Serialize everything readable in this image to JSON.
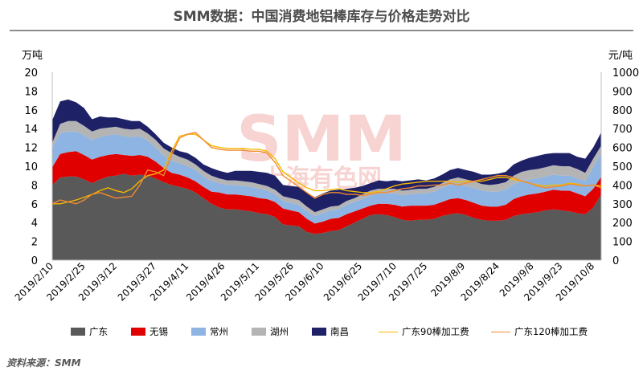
{
  "title": "SMM数据：中国消费地铝棒库存与价格走势对比",
  "source": "资料来源：SMM",
  "watermark": {
    "main": "SMM",
    "sub": "上海有色网"
  },
  "chart_data": {
    "type": "area",
    "stacked": true,
    "grid": false,
    "legend_position": "bottom",
    "x": [
      "2019/2/10",
      "2019/2/14",
      "2019/2/18",
      "2019/2/21",
      "2019/2/25",
      "2019/2/28",
      "2019/3/4",
      "2019/3/7",
      "2019/3/12",
      "2019/3/14",
      "2019/3/18",
      "2019/3/21",
      "2019/3/25",
      "2019/3/28",
      "2019/4/1",
      "2019/4/4",
      "2019/4/8",
      "2019/4/11",
      "2019/4/15",
      "2019/4/18",
      "2019/4/22",
      "2019/4/25",
      "2019/4/29",
      "2019/5/2",
      "2019/5/6",
      "2019/5/9",
      "2019/5/13",
      "2019/5/16",
      "2019/5/20",
      "2019/5/23",
      "2019/5/27",
      "2019/5/30",
      "2019/6/3",
      "2019/6/6",
      "2019/6/10",
      "2019/6/13",
      "2019/6/17",
      "2019/6/20",
      "2019/6/24",
      "2019/6/27",
      "2019/7/1",
      "2019/7/4",
      "2019/7/8",
      "2019/7/11",
      "2019/7/15",
      "2019/7/18",
      "2019/7/22",
      "2019/7/25",
      "2019/7/29",
      "2019/8/1",
      "2019/8/5",
      "2019/8/8",
      "2019/8/12",
      "2019/8/15",
      "2019/8/19",
      "2019/8/22",
      "2019/8/26",
      "2019/8/29",
      "2019/9/2",
      "2019/9/5",
      "2019/9/9",
      "2019/9/12",
      "2019/9/16",
      "2019/9/19",
      "2019/9/23",
      "2019/9/26",
      "2019/9/30",
      "2019/10/3",
      "2019/10/8",
      "2019/10/10"
    ],
    "x_tick_labels": [
      "2019/2/10",
      "2019/2/25",
      "2019/3/12",
      "2019/3/27",
      "2019/4/11",
      "2019/4/26",
      "2019/5/11",
      "2019/5/26",
      "2019/6/10",
      "2019/6/25",
      "2019/7/10",
      "2019/7/25",
      "2019/8/9",
      "2019/8/24",
      "2019/9/8",
      "2019/9/23",
      "2019/10/8"
    ],
    "y_left": {
      "unit": "万吨",
      "min": 0,
      "max": 20,
      "ticks": [
        0,
        2,
        4,
        6,
        8,
        10,
        12,
        14,
        16,
        18,
        20
      ]
    },
    "y_right": {
      "unit": "元/吨",
      "min": 0,
      "max": 1000,
      "ticks": [
        0,
        100,
        200,
        300,
        400,
        500,
        600,
        700,
        800,
        900,
        1000
      ]
    },
    "series": [
      {
        "name": "广东",
        "type": "area",
        "color": "#595959",
        "values": [
          8.0,
          8.8,
          8.9,
          8.9,
          8.6,
          8.2,
          8.6,
          8.9,
          9.0,
          9.2,
          9.0,
          9.1,
          9.0,
          8.7,
          8.3,
          8.0,
          7.8,
          7.6,
          7.2,
          6.6,
          6.0,
          5.6,
          5.4,
          5.4,
          5.3,
          5.2,
          5.0,
          4.9,
          4.6,
          3.8,
          3.7,
          3.6,
          3.0,
          2.8,
          2.9,
          3.1,
          3.2,
          3.6,
          4.0,
          4.4,
          4.8,
          4.9,
          4.8,
          4.6,
          4.3,
          4.2,
          4.3,
          4.3,
          4.4,
          4.7,
          4.9,
          5.0,
          4.8,
          4.5,
          4.3,
          4.2,
          4.2,
          4.3,
          4.7,
          4.9,
          5.0,
          5.1,
          5.3,
          5.4,
          5.3,
          5.2,
          5.0,
          4.9,
          5.6,
          7.0
        ]
      },
      {
        "name": "无锡",
        "type": "area",
        "color": "#e00000",
        "values": [
          1.9,
          2.5,
          2.6,
          2.7,
          2.6,
          2.5,
          2.4,
          2.3,
          2.3,
          2.0,
          2.1,
          2.1,
          2.0,
          1.8,
          1.5,
          1.3,
          1.3,
          1.2,
          1.2,
          1.2,
          1.3,
          1.6,
          1.6,
          1.6,
          1.6,
          1.6,
          1.6,
          1.6,
          1.6,
          1.7,
          1.6,
          1.5,
          1.4,
          1.1,
          1.2,
          1.3,
          1.3,
          1.3,
          1.2,
          1.1,
          1.0,
          1.1,
          1.2,
          1.3,
          1.4,
          1.6,
          1.5,
          1.5,
          1.5,
          1.5,
          1.6,
          1.6,
          1.6,
          1.6,
          1.5,
          1.5,
          1.5,
          1.6,
          1.8,
          1.9,
          2.0,
          2.0,
          2.0,
          2.1,
          2.1,
          2.2,
          2.1,
          1.9,
          2.0,
          1.9
        ]
      },
      {
        "name": "常州",
        "type": "area",
        "color": "#8db4e2",
        "values": [
          2.1,
          2.2,
          2.2,
          2.1,
          2.1,
          2.1,
          2.1,
          2.1,
          2.1,
          2.0,
          2.0,
          2.0,
          1.7,
          1.5,
          1.3,
          1.3,
          1.2,
          1.2,
          1.2,
          1.1,
          1.1,
          1.0,
          1.0,
          1.0,
          1.0,
          1.0,
          1.0,
          0.9,
          0.8,
          0.8,
          0.8,
          0.8,
          0.8,
          0.8,
          0.9,
          0.9,
          0.9,
          1.0,
          1.0,
          1.0,
          1.1,
          1.1,
          1.1,
          1.2,
          1.2,
          1.2,
          1.3,
          1.3,
          1.4,
          1.5,
          1.5,
          1.5,
          1.5,
          1.6,
          1.6,
          1.6,
          1.6,
          1.6,
          1.6,
          1.6,
          1.6,
          1.6,
          1.6,
          1.6,
          1.6,
          1.6,
          1.6,
          1.6,
          2.3,
          2.5
        ]
      },
      {
        "name": "湖州",
        "type": "area",
        "color": "#b4b4b4",
        "values": [
          0.5,
          1.0,
          1.1,
          1.1,
          1.0,
          0.9,
          0.9,
          0.8,
          0.8,
          0.8,
          0.8,
          0.8,
          0.8,
          0.8,
          0.8,
          0.8,
          0.7,
          0.7,
          0.6,
          0.6,
          0.6,
          0.5,
          0.5,
          0.5,
          0.5,
          0.5,
          0.5,
          0.5,
          0.5,
          0.5,
          0.5,
          0.5,
          0.5,
          0.4,
          0.4,
          0.4,
          0.4,
          0.4,
          0.4,
          0.5,
          0.5,
          0.5,
          0.5,
          0.5,
          0.5,
          0.5,
          0.5,
          0.5,
          0.5,
          0.5,
          0.6,
          0.7,
          0.7,
          0.7,
          0.7,
          0.7,
          0.8,
          0.8,
          0.9,
          1.0,
          1.0,
          1.0,
          1.0,
          1.0,
          1.0,
          1.0,
          1.0,
          0.9,
          0.9,
          0.8
        ]
      },
      {
        "name": "南昌",
        "type": "area",
        "color": "#1f2166",
        "values": [
          2.4,
          2.4,
          2.3,
          2.0,
          1.9,
          1.3,
          1.3,
          1.1,
          1.0,
          1.0,
          0.9,
          0.8,
          0.7,
          0.6,
          0.6,
          0.6,
          0.6,
          0.7,
          0.7,
          0.7,
          0.8,
          0.8,
          0.8,
          1.0,
          1.1,
          1.2,
          1.3,
          1.4,
          1.5,
          1.2,
          1.3,
          1.4,
          1.5,
          1.6,
          1.7,
          1.7,
          1.7,
          1.3,
          1.1,
          0.9,
          0.8,
          0.9,
          0.8,
          0.9,
          1.0,
          1.0,
          1.0,
          0.9,
          0.9,
          0.9,
          1.0,
          1.0,
          1.0,
          1.0,
          1.0,
          1.1,
          1.1,
          1.1,
          1.2,
          1.2,
          1.3,
          1.4,
          1.4,
          1.3,
          1.4,
          1.4,
          1.3,
          1.5,
          1.2,
          1.4
        ]
      },
      {
        "name": "广东90棒加工费",
        "type": "line",
        "axis": "right",
        "color": "#f5b700",
        "values": [
          300,
          300,
          310,
          320,
          335,
          350,
          370,
          385,
          370,
          360,
          380,
          420,
          450,
          460,
          480,
          580,
          660,
          670,
          670,
          640,
          610,
          600,
          595,
          595,
          595,
          590,
          590,
          580,
          540,
          470,
          440,
          410,
          385,
          370,
          370,
          375,
          380,
          370,
          365,
          360,
          360,
          365,
          380,
          395,
          405,
          410,
          415,
          420,
          420,
          420,
          420,
          415,
          420,
          420,
          420,
          430,
          440,
          440,
          430,
          420,
          410,
          400,
          395,
          400,
          400,
          410,
          405,
          395,
          400,
          395
        ]
      },
      {
        "name": "广东120棒加工费",
        "type": "line",
        "axis": "right",
        "color": "#f28a30",
        "values": [
          300,
          320,
          310,
          300,
          320,
          350,
          360,
          345,
          330,
          335,
          340,
          400,
          480,
          470,
          450,
          560,
          650,
          670,
          680,
          640,
          600,
          590,
          585,
          585,
          585,
          580,
          580,
          570,
          520,
          450,
          420,
          390,
          360,
          330,
          350,
          360,
          360,
          350,
          350,
          345,
          350,
          360,
          360,
          370,
          380,
          385,
          395,
          395,
          400,
          400,
          410,
          400,
          410,
          420,
          430,
          440,
          450,
          450,
          440,
          420,
          410,
          395,
          385,
          390,
          395,
          405,
          400,
          395,
          400,
          385
        ]
      }
    ]
  },
  "colors": {
    "title": "#4d4d4d",
    "title_rule": "#8c8c8c",
    "watermark": "#f4c1bf",
    "axis": "#bfbfbf"
  },
  "icons": {
    "legend_area": "square",
    "legend_line": "line"
  }
}
